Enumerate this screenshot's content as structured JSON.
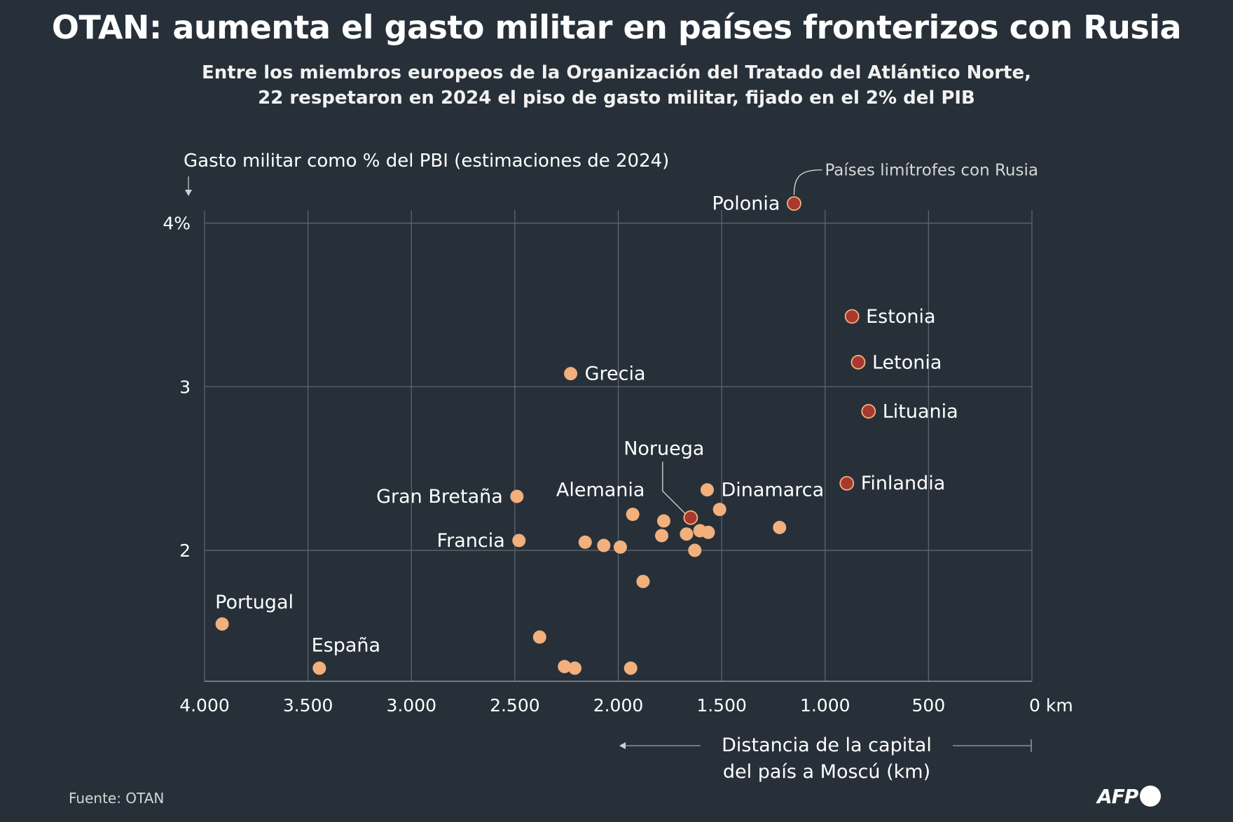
{
  "title": "OTAN: aumenta el gasto militar en países fronterizos con Rusia",
  "subtitle_line1": "Entre los miembros europeos de la Organización del Tratado del Atlántico Norte,",
  "subtitle_line2": "22 respetaron en 2024 el piso de gasto militar, fijado en el 2% del PIB",
  "source": "Fuente: OTAN",
  "logo": "AFP",
  "colors": {
    "background": "#273039",
    "grid": "#5c666f",
    "normal_point": "#f2b07c",
    "border_point": "#a8392e",
    "text": "#ffffff"
  },
  "chart_data": {
    "type": "scatter",
    "ylabel": "Gasto militar como % del PBI (estimaciones de 2024)",
    "xlabel_line1": "Distancia de la capital",
    "xlabel_line2": "del país a Moscú (km)",
    "legend_border": "Países limítrofes con Rusia",
    "xlim": [
      4000,
      0
    ],
    "ylim": [
      1.2,
      4.08
    ],
    "x_ticks": [
      {
        "value": 4000,
        "label": "4.000"
      },
      {
        "value": 3500,
        "label": "3.500"
      },
      {
        "value": 3000,
        "label": "3.000"
      },
      {
        "value": 2500,
        "label": "2.500"
      },
      {
        "value": 2000,
        "label": "2.000"
      },
      {
        "value": 1500,
        "label": "1.500"
      },
      {
        "value": 1000,
        "label": "1.000"
      },
      {
        "value": 500,
        "label": "500"
      },
      {
        "value": 0,
        "label": "0 km"
      }
    ],
    "y_ticks": [
      {
        "value": 4,
        "label": "4%"
      },
      {
        "value": 3,
        "label": "3"
      },
      {
        "value": 2,
        "label": "2"
      }
    ],
    "grid": true,
    "points": [
      {
        "name": "Polonia",
        "x": 1150,
        "y": 4.12,
        "border": true,
        "label_side": "left"
      },
      {
        "name": "Estonia",
        "x": 870,
        "y": 3.43,
        "border": true,
        "label_side": "right"
      },
      {
        "name": "Letonia",
        "x": 840,
        "y": 3.15,
        "border": true,
        "label_side": "right"
      },
      {
        "name": "Lituania",
        "x": 790,
        "y": 2.85,
        "border": true,
        "label_side": "right"
      },
      {
        "name": "Finlandia",
        "x": 895,
        "y": 2.41,
        "border": true,
        "label_side": "right"
      },
      {
        "name": "Noruega",
        "x": 1650,
        "y": 2.2,
        "border": true,
        "label_side": "leader"
      },
      {
        "name": "Grecia",
        "x": 2230,
        "y": 3.08,
        "border": false,
        "label_side": "right"
      },
      {
        "name": "Dinamarca",
        "x": 1570,
        "y": 2.37,
        "border": false,
        "label_side": "right"
      },
      {
        "name": "Gran Bretaña",
        "x": 2490,
        "y": 2.33,
        "border": false,
        "label_side": "left"
      },
      {
        "name": "Alemania",
        "x": 1930,
        "y": 2.22,
        "border": false,
        "label_side": "above"
      },
      {
        "name": "Francia",
        "x": 2480,
        "y": 2.06,
        "border": false,
        "label_side": "left"
      },
      {
        "name": "Portugal",
        "x": 3915,
        "y": 1.55,
        "border": false,
        "label_side": "above"
      },
      {
        "name": "España",
        "x": 3445,
        "y": 1.28,
        "border": false,
        "label_side": "above"
      },
      {
        "name": "",
        "x": 1510,
        "y": 2.25,
        "border": false
      },
      {
        "name": "",
        "x": 1780,
        "y": 2.18,
        "border": false
      },
      {
        "name": "",
        "x": 1220,
        "y": 2.14,
        "border": false
      },
      {
        "name": "",
        "x": 1605,
        "y": 2.12,
        "border": false
      },
      {
        "name": "",
        "x": 1565,
        "y": 2.11,
        "border": false
      },
      {
        "name": "",
        "x": 1670,
        "y": 2.1,
        "border": false
      },
      {
        "name": "",
        "x": 1790,
        "y": 2.09,
        "border": false
      },
      {
        "name": "",
        "x": 2160,
        "y": 2.05,
        "border": false
      },
      {
        "name": "",
        "x": 2070,
        "y": 2.03,
        "border": false
      },
      {
        "name": "",
        "x": 1990,
        "y": 2.02,
        "border": false
      },
      {
        "name": "",
        "x": 1630,
        "y": 2.0,
        "border": false
      },
      {
        "name": "",
        "x": 1880,
        "y": 1.81,
        "border": false
      },
      {
        "name": "",
        "x": 2380,
        "y": 1.47,
        "border": false
      },
      {
        "name": "",
        "x": 2260,
        "y": 1.29,
        "border": false
      },
      {
        "name": "",
        "x": 2210,
        "y": 1.28,
        "border": false
      },
      {
        "name": "",
        "x": 1940,
        "y": 1.28,
        "border": false
      }
    ]
  }
}
